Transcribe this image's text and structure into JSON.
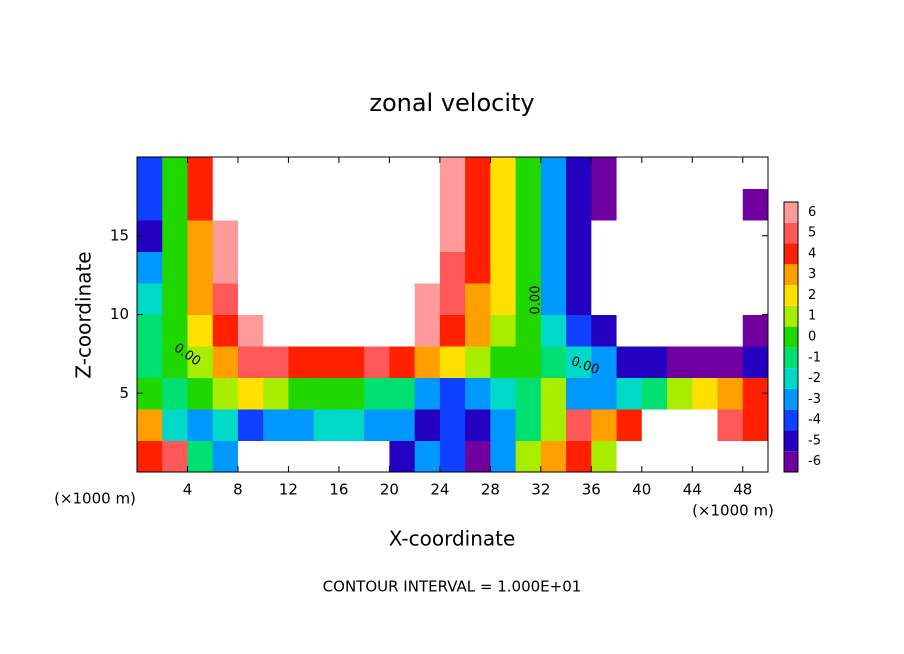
{
  "chart_data": {
    "type": "heatmap",
    "title": "zonal velocity",
    "x_label": "X-coordinate",
    "y_label": "Z-coordinate",
    "x_unit": "(×1000 m)",
    "y_unit": "(×1000 m)",
    "footer": "CONTOUR INTERVAL = 1.000E+01",
    "contour_labels": [
      "0.00",
      "0.00",
      "0.00"
    ],
    "xlim": [
      0,
      50
    ],
    "ylim": [
      0,
      20
    ],
    "xticks": [
      4,
      8,
      12,
      16,
      20,
      24,
      28,
      32,
      36,
      40,
      44,
      48
    ],
    "yticks": [
      5,
      10,
      15
    ],
    "x": [
      1,
      3,
      5,
      7,
      9,
      11,
      13,
      15,
      17,
      19,
      21,
      23,
      25,
      27,
      29,
      31,
      33,
      35,
      37,
      39,
      41,
      43,
      45,
      47,
      49
    ],
    "y": [
      1,
      3,
      5,
      7,
      9,
      11,
      13,
      15,
      17,
      19
    ],
    "z": [
      [
        4,
        5,
        -1,
        -3,
        -8,
        -8,
        -8,
        -8,
        -8,
        -8,
        -5,
        -3,
        -4,
        -6,
        -3,
        1,
        3,
        4,
        1,
        8,
        8,
        8,
        8,
        8,
        8
      ],
      [
        3,
        -2,
        -3,
        -2,
        -4,
        -3,
        -3,
        -2,
        -2,
        -3,
        -3,
        -5,
        -4,
        -5,
        -3,
        -1,
        1,
        5,
        3,
        4,
        8,
        8,
        8,
        5,
        4
      ],
      [
        0,
        -1,
        0,
        1,
        2,
        1,
        0,
        0,
        0,
        -1,
        -1,
        -3,
        -4,
        -3,
        -2,
        -1,
        1,
        -3,
        -3,
        -2,
        -1,
        1,
        2,
        3,
        4
      ],
      [
        -1,
        0,
        1,
        3,
        5,
        5,
        4,
        4,
        4,
        5,
        4,
        3,
        2,
        1,
        0,
        0,
        -1,
        -2,
        -3,
        -5,
        -5,
        -6,
        -6,
        -6,
        -5
      ],
      [
        -1,
        0,
        2,
        4,
        6,
        8,
        8,
        8,
        8,
        7,
        7,
        6,
        4,
        3,
        1,
        0,
        -2,
        -4,
        -5,
        -8,
        -8,
        -8,
        -8,
        -8,
        -6
      ],
      [
        -2,
        0,
        3,
        5,
        8,
        8,
        8,
        8,
        8,
        8,
        8,
        6,
        5,
        3,
        2,
        0,
        -3,
        -5,
        -7,
        -8,
        -8,
        -8,
        -8,
        -8,
        -7
      ],
      [
        -3,
        0,
        3,
        6,
        8,
        8,
        8,
        8,
        8,
        8,
        8,
        7,
        5,
        4,
        2,
        0,
        -3,
        -5,
        -7,
        -8,
        -8,
        -8,
        -8,
        -8,
        -8
      ],
      [
        -5,
        0,
        3,
        6,
        8,
        8,
        8,
        8,
        8,
        8,
        8,
        8,
        6,
        4,
        2,
        0,
        -3,
        -5,
        -7,
        -8,
        -8,
        -8,
        -8,
        -8,
        -8
      ],
      [
        -4,
        0,
        4,
        7,
        8,
        8,
        8,
        8,
        8,
        8,
        8,
        8,
        6,
        4,
        2,
        0,
        -3,
        -5,
        -6,
        -8,
        -8,
        -8,
        -8,
        -8,
        -6
      ],
      [
        -4,
        0,
        4,
        7,
        8,
        8,
        8,
        8,
        8,
        8,
        8,
        8,
        6,
        4,
        2,
        0,
        -3,
        -5,
        -6,
        -8,
        -8,
        -8,
        -8,
        -8,
        -8
      ]
    ],
    "zlim": [
      -6,
      6
    ],
    "levels": [
      -6,
      -5,
      -4,
      -3,
      -2,
      -1,
      0,
      1,
      2,
      3,
      4,
      5,
      6
    ],
    "level_colors": [
      "#7000a0",
      "#2400c0",
      "#1040ff",
      "#0098ff",
      "#00d8c8",
      "#00e070",
      "#20d800",
      "#a8ec00",
      "#ffe000",
      "#ffa000",
      "#ff2000",
      "#ff5858",
      "#ff9a9a"
    ],
    "out_of_range_color": "#ffffff"
  }
}
